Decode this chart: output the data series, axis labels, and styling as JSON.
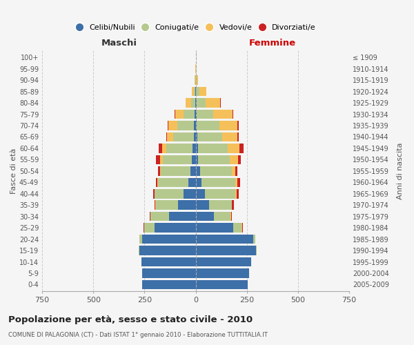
{
  "age_groups": [
    "0-4",
    "5-9",
    "10-14",
    "15-19",
    "20-24",
    "25-29",
    "30-34",
    "35-39",
    "40-44",
    "45-49",
    "50-54",
    "55-59",
    "60-64",
    "65-69",
    "70-74",
    "75-79",
    "80-84",
    "85-89",
    "90-94",
    "95-99",
    "100+"
  ],
  "birth_years": [
    "2005-2009",
    "2000-2004",
    "1995-1999",
    "1990-1994",
    "1985-1989",
    "1980-1984",
    "1975-1979",
    "1970-1974",
    "1965-1969",
    "1960-1964",
    "1955-1959",
    "1950-1954",
    "1945-1949",
    "1940-1944",
    "1935-1939",
    "1930-1934",
    "1925-1929",
    "1920-1924",
    "1915-1919",
    "1910-1914",
    "≤ 1909"
  ],
  "colors": {
    "celibi": "#3d6fa8",
    "coniugati": "#b5c98e",
    "vedovi": "#f5c05a",
    "divorziati": "#cc2222"
  },
  "males": {
    "celibi": [
      260,
      260,
      265,
      275,
      260,
      200,
      130,
      85,
      60,
      35,
      25,
      20,
      15,
      10,
      8,
      5,
      3,
      2,
      0,
      0,
      0
    ],
    "coniugati": [
      0,
      0,
      0,
      2,
      15,
      50,
      90,
      110,
      140,
      150,
      145,
      140,
      130,
      100,
      80,
      55,
      20,
      8,
      2,
      0,
      0
    ],
    "vedovi": [
      0,
      0,
      0,
      0,
      0,
      1,
      1,
      1,
      1,
      2,
      5,
      15,
      20,
      30,
      45,
      40,
      25,
      10,
      3,
      1,
      0
    ],
    "divorziati": [
      0,
      0,
      0,
      1,
      1,
      3,
      5,
      5,
      8,
      8,
      10,
      18,
      15,
      5,
      5,
      2,
      0,
      0,
      0,
      0,
      0
    ]
  },
  "females": {
    "nubili": [
      255,
      260,
      270,
      295,
      280,
      185,
      90,
      65,
      45,
      30,
      20,
      12,
      10,
      8,
      5,
      5,
      5,
      3,
      1,
      0,
      0
    ],
    "coniugati": [
      0,
      0,
      0,
      2,
      10,
      40,
      80,
      110,
      150,
      165,
      155,
      155,
      145,
      120,
      110,
      80,
      45,
      15,
      3,
      0,
      0
    ],
    "vedovi": [
      0,
      0,
      0,
      0,
      0,
      1,
      2,
      3,
      5,
      10,
      20,
      40,
      60,
      75,
      90,
      95,
      70,
      35,
      8,
      2,
      0
    ],
    "divorziati": [
      0,
      0,
      0,
      0,
      1,
      3,
      5,
      8,
      10,
      12,
      10,
      15,
      20,
      8,
      5,
      5,
      2,
      0,
      0,
      0,
      0
    ]
  },
  "title": "Popolazione per età, sesso e stato civile - 2010",
  "subtitle": "COMUNE DI PALAGONIA (CT) - Dati ISTAT 1° gennaio 2010 - Elaborazione TUTTITALIA.IT",
  "xlabel_left": "Maschi",
  "xlabel_right": "Femmine",
  "ylabel_left": "Fasce di età",
  "ylabel_right": "Anni di nascita",
  "xlim": 750,
  "legend_labels": [
    "Celibi/Nubili",
    "Coniugati/e",
    "Vedovi/e",
    "Divorziati/e"
  ],
  "bg_color": "#f5f5f5",
  "grid_color": "#cccccc"
}
